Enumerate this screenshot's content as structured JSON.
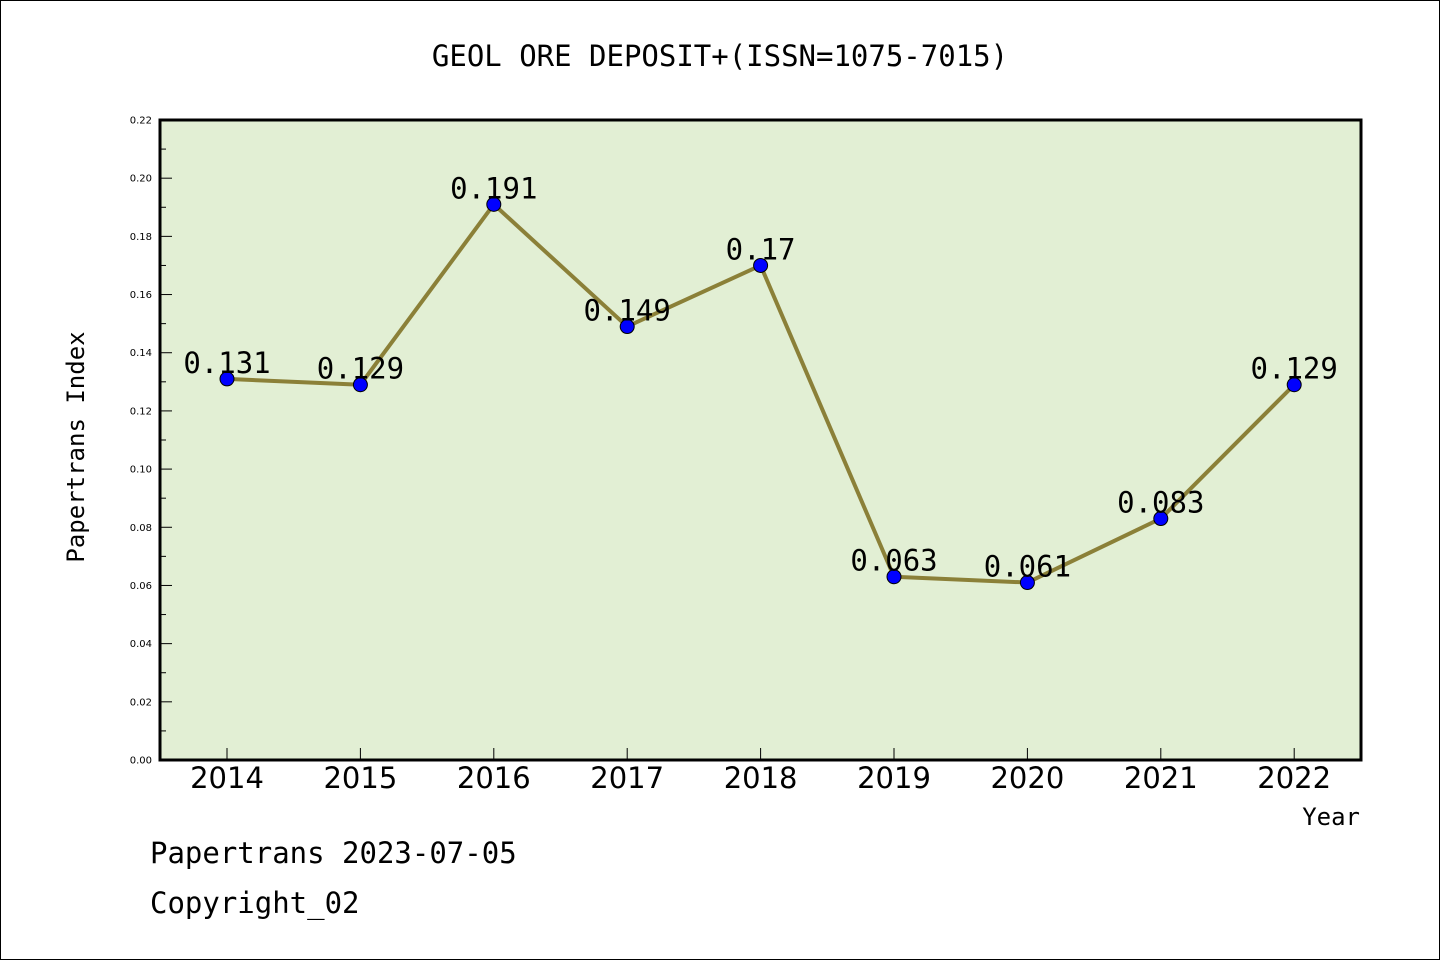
{
  "chart_data": {
    "type": "line",
    "title": "GEOL ORE DEPOSIT+(ISSN=1075-7015)",
    "xlabel": "Year",
    "ylabel": "Papertrans Index",
    "categories": [
      "2014",
      "2015",
      "2016",
      "2017",
      "2018",
      "2019",
      "2020",
      "2021",
      "2022"
    ],
    "values": [
      0.131,
      0.129,
      0.191,
      0.149,
      0.17,
      0.063,
      0.061,
      0.083,
      0.129
    ],
    "data_labels": [
      "0.131",
      "0.129",
      "0.191",
      "0.149",
      "0.17",
      "0.063",
      "0.061",
      "0.083",
      "0.129"
    ],
    "ylim": [
      0,
      0.22
    ],
    "yticks": [
      "0.00",
      "0.02",
      "0.04",
      "0.06",
      "0.08",
      "0.10",
      "0.12",
      "0.14",
      "0.16",
      "0.18",
      "0.20",
      "0.22"
    ],
    "grid": false,
    "colors": {
      "plot_background": "#e2efd4",
      "line": "#8b8038",
      "marker": "#0000ff"
    }
  },
  "footer": {
    "line1": "Papertrans 2023-07-05",
    "line2": "Copyright_02"
  }
}
